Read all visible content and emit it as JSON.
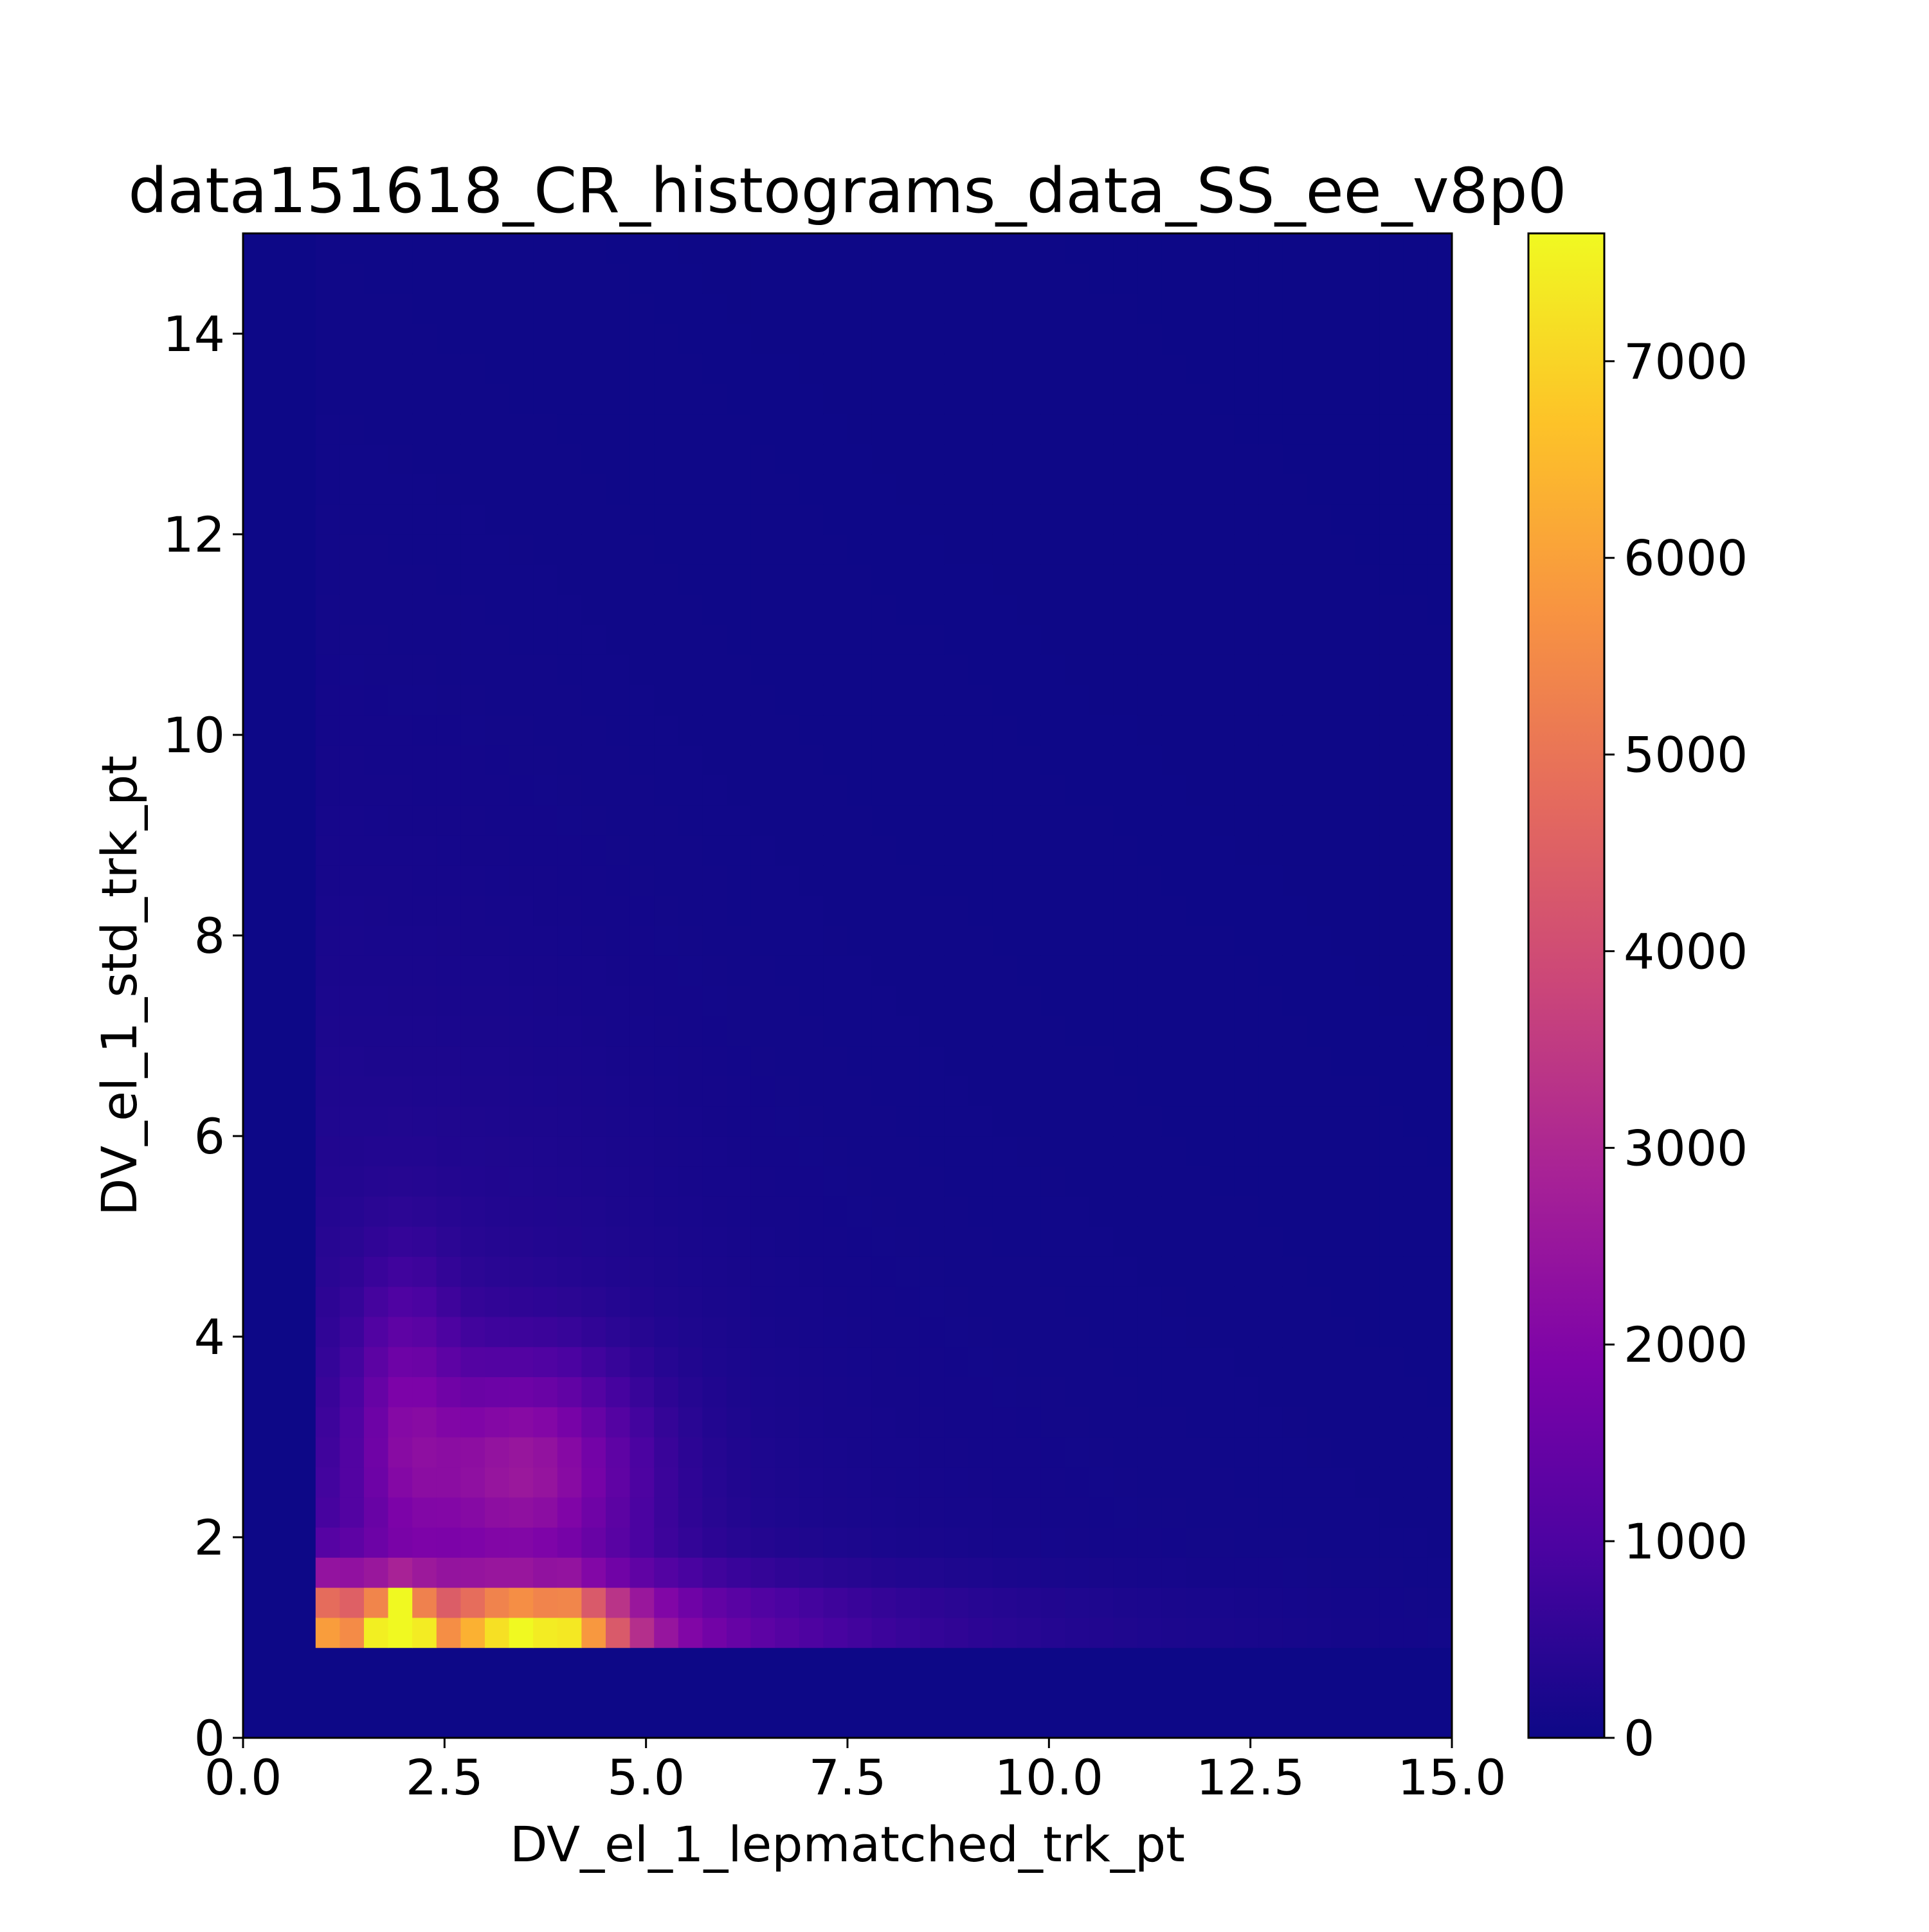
{
  "chart_data": {
    "type": "heatmap",
    "title": "data151618_CR_histograms_data_SS_ee_v8p0",
    "xlabel": "DV_el_1_lepmatched_trk_pt",
    "ylabel": "DV_el_1_std_trk_pt",
    "xlim": [
      0,
      15
    ],
    "ylim": [
      0,
      15
    ],
    "x_ticks": [
      "0.0",
      "2.5",
      "5.0",
      "7.5",
      "10.0",
      "12.5",
      "15.0"
    ],
    "y_ticks": [
      "0",
      "2",
      "4",
      "6",
      "8",
      "10",
      "12",
      "14"
    ],
    "colorbar": {
      "colormap": "plasma",
      "range": [
        0,
        7650
      ],
      "ticks": [
        "0",
        "1000",
        "2000",
        "3000",
        "4000",
        "5000",
        "6000",
        "7000"
      ]
    },
    "bins": {
      "n_x": 50,
      "n_y": 50,
      "x_range": [
        0,
        15
      ],
      "y_range": [
        0,
        15
      ]
    },
    "distribution_estimate": {
      "description": "Counts concentrate at low track pt; empty below x=0.9 and y=0.9; peak ~7650 near x≈1.8–2.1, y≈1.0–1.5",
      "peak_value": 7650,
      "peak_x": [
        1.8,
        2.1
      ],
      "peak_y": [
        0.9,
        1.5
      ]
    }
  }
}
